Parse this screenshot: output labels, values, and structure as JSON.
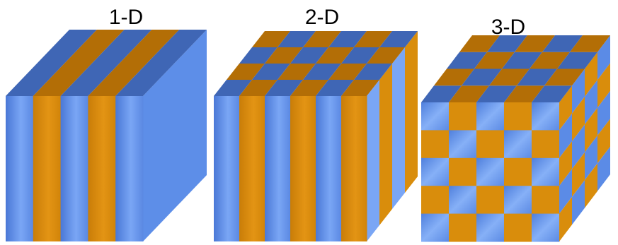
{
  "panels": [
    {
      "label": "1-D",
      "periodic_dimensions": 1
    },
    {
      "label": "2-D",
      "periodic_dimensions": 2
    },
    {
      "label": "3-D",
      "periodic_dimensions": 3
    }
  ],
  "colors": {
    "blue": "#5b8be6",
    "blue_light": "#7aa6f5",
    "blue_dark": "#3f66b5",
    "orange": "#d98d0c",
    "orange_dark": "#b36e06",
    "background": "#ffffff"
  }
}
